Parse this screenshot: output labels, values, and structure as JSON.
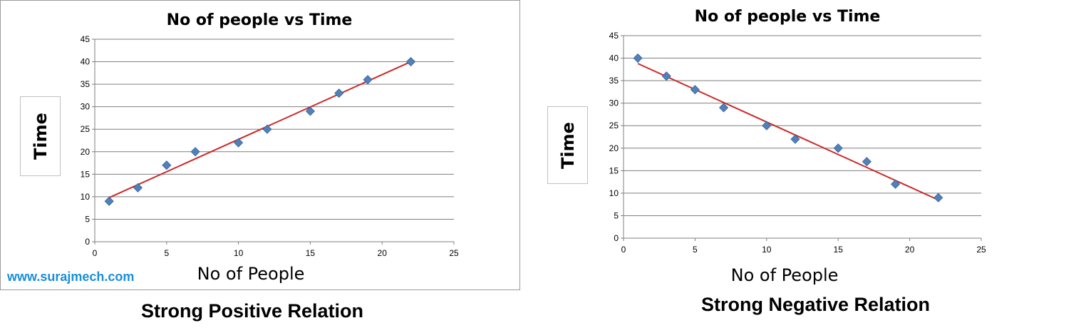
{
  "watermark": "www.surajmech.com",
  "chart_data": [
    {
      "type": "scatter",
      "title": "No of people vs Time",
      "xlabel": "No of People",
      "ylabel": "Time",
      "caption": "Strong Positive Relation",
      "xlim": [
        0,
        25
      ],
      "ylim": [
        0,
        45
      ],
      "x_ticks": [
        0,
        5,
        10,
        15,
        20,
        25
      ],
      "y_ticks": [
        0,
        5,
        10,
        15,
        20,
        25,
        30,
        35,
        40,
        45
      ],
      "grid": true,
      "points": [
        {
          "x": 1,
          "y": 9
        },
        {
          "x": 3,
          "y": 12
        },
        {
          "x": 5,
          "y": 17
        },
        {
          "x": 7,
          "y": 20
        },
        {
          "x": 10,
          "y": 22
        },
        {
          "x": 12,
          "y": 25
        },
        {
          "x": 15,
          "y": 29
        },
        {
          "x": 17,
          "y": 33
        },
        {
          "x": 19,
          "y": 36
        },
        {
          "x": 22,
          "y": 40
        }
      ],
      "trendline": {
        "x": [
          1,
          22
        ],
        "y": [
          9.8,
          40
        ]
      },
      "marker_color": "#4f81bd",
      "trendline_color": "#cc2a2a"
    },
    {
      "type": "scatter",
      "title": "No of people vs Time",
      "xlabel": "No of People",
      "ylabel": "Time",
      "caption": "Strong Negative Relation",
      "xlim": [
        0,
        25
      ],
      "ylim": [
        0,
        45
      ],
      "x_ticks": [
        0,
        5,
        10,
        15,
        20,
        25
      ],
      "y_ticks": [
        0,
        5,
        10,
        15,
        20,
        25,
        30,
        35,
        40,
        45
      ],
      "grid": true,
      "points": [
        {
          "x": 1,
          "y": 40
        },
        {
          "x": 3,
          "y": 36
        },
        {
          "x": 5,
          "y": 33
        },
        {
          "x": 7,
          "y": 29
        },
        {
          "x": 10,
          "y": 25
        },
        {
          "x": 12,
          "y": 22
        },
        {
          "x": 15,
          "y": 20
        },
        {
          "x": 17,
          "y": 17
        },
        {
          "x": 19,
          "y": 12
        },
        {
          "x": 22,
          "y": 9
        }
      ],
      "trendline": {
        "x": [
          1,
          22
        ],
        "y": [
          38.8,
          8.5
        ]
      },
      "marker_color": "#4f81bd",
      "trendline_color": "#cc2a2a"
    }
  ]
}
